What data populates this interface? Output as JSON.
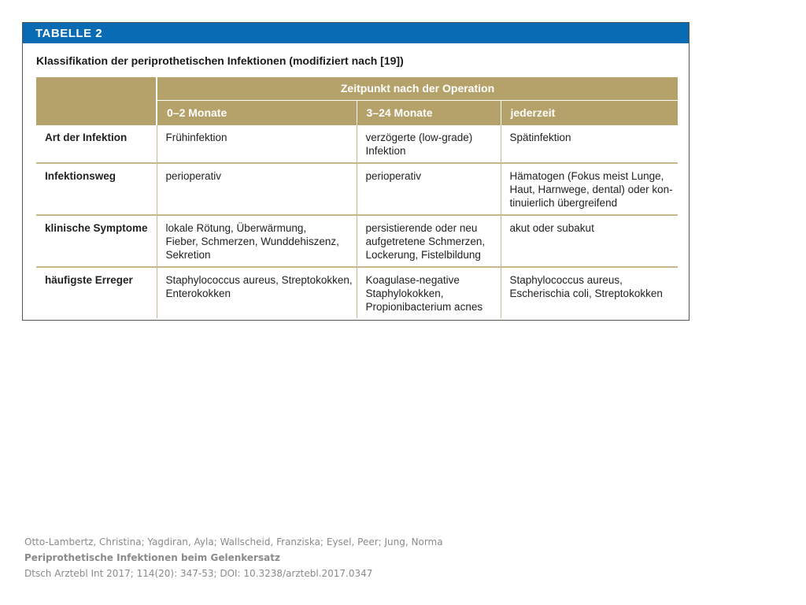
{
  "table": {
    "label": "TABELLE 2",
    "title": "Klassifikation der periprothetischen Infektionen (modifiziert nach [19])",
    "group_header": "Zeitpunkt nach der Operation",
    "columns": [
      "0–2 Monate",
      "3–24 Monate",
      "jederzeit"
    ],
    "rows": [
      {
        "label": "Art der Infektion",
        "cells": [
          "Frühinfektion",
          "verzögerte (low-grade)\nInfektion",
          "Spätinfektion"
        ]
      },
      {
        "label": "Infektionsweg",
        "cells": [
          "perioperativ",
          "perioperativ",
          "Hämatogen (Fokus meist Lunge,\nHaut, Harnwege, dental) oder kon-\ntinuierlich übergreifend"
        ]
      },
      {
        "label": "klinische Symptome",
        "cells": [
          "lokale Rötung, Überwärmung,\nFieber, Schmerzen, Wunddehiszenz,\nSekretion",
          "persistierende oder neu\naufgetretene Schmerzen,\nLockerung, Fistelbildung",
          "akut oder subakut"
        ]
      },
      {
        "label": "häufigste Erreger",
        "cells": [
          "Staphylococcus aureus, Streptokokken,\nEnterokokken",
          "Koagulase-negative\nStaphylokokken,\nPropionibacterium acnes",
          "Staphylococcus aureus,\nEscherischia coli, Streptokokken"
        ]
      }
    ]
  },
  "citation": {
    "authors": "Otto-Lambertz, Christina; Yagdiran, Ayla; Wallscheid, Franziska; Eysel, Peer; Jung, Norma",
    "title": "Periprothetische Infektionen beim Gelenkersatz",
    "source": "Dtsch Arztebl Int 2017; 114(20): 347-53; DOI: 10.3238/arztebl.2017.0347"
  },
  "colors": {
    "header_blue": "#0a6bb5",
    "header_gold": "#b5a26a",
    "rule_gold": "#c6b88a"
  }
}
